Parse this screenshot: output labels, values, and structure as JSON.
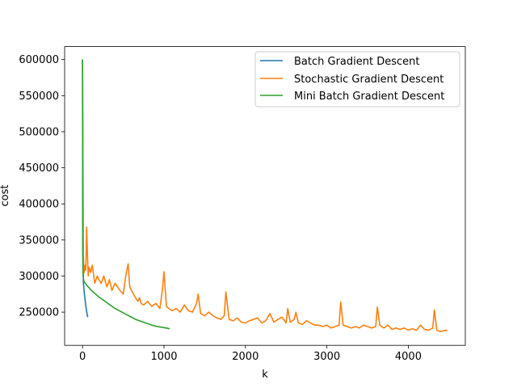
{
  "chart_data": {
    "type": "line",
    "title": "",
    "xlabel": "k",
    "ylabel": "cost",
    "xlim": [
      -220,
      4700
    ],
    "ylim": [
      204000,
      618000
    ],
    "xticks": [
      0,
      1000,
      2000,
      3000,
      4000
    ],
    "xtick_labels": [
      "0",
      "1000",
      "2000",
      "3000",
      "4000"
    ],
    "yticks": [
      250000,
      300000,
      350000,
      400000,
      450000,
      500000,
      550000,
      600000
    ],
    "ytick_labels": [
      "250000",
      "300000",
      "350000",
      "400000",
      "450000",
      "500000",
      "550000",
      "600000"
    ],
    "grid": false,
    "legend_position": "top-right",
    "series": [
      {
        "name": "Batch Gradient Descent",
        "color": "#1f77b4",
        "x": [
          0,
          2,
          5,
          10,
          15,
          20,
          30,
          40,
          50,
          60,
          65
        ],
        "y": [
          600000,
          420000,
          330000,
          292000,
          285000,
          278000,
          268000,
          259000,
          251000,
          245000,
          243000
        ]
      },
      {
        "name": "Stochastic Gradient Descent",
        "color": "#ff7f0e",
        "x": [
          0,
          5,
          10,
          15,
          20,
          30,
          40,
          50,
          60,
          70,
          80,
          100,
          120,
          150,
          180,
          200,
          230,
          260,
          300,
          330,
          360,
          400,
          430,
          460,
          500,
          530,
          560,
          580,
          600,
          650,
          680,
          700,
          720,
          750,
          800,
          850,
          900,
          950,
          980,
          1000,
          1030,
          1060,
          1100,
          1150,
          1200,
          1250,
          1300,
          1350,
          1400,
          1420,
          1450,
          1500,
          1550,
          1600,
          1650,
          1700,
          1740,
          1760,
          1800,
          1850,
          1900,
          1950,
          2000,
          2050,
          2100,
          2150,
          2200,
          2250,
          2300,
          2350,
          2400,
          2450,
          2500,
          2520,
          2550,
          2600,
          2620,
          2650,
          2700,
          2750,
          2800,
          2850,
          2900,
          2950,
          3000,
          3050,
          3100,
          3150,
          3170,
          3200,
          3250,
          3300,
          3350,
          3400,
          3450,
          3500,
          3550,
          3600,
          3620,
          3650,
          3700,
          3750,
          3800,
          3850,
          3900,
          3950,
          4000,
          4050,
          4100,
          4150,
          4200,
          4250,
          4300,
          4320,
          4350,
          4400,
          4450,
          4480
        ],
        "y": [
          600000,
          480000,
          330000,
          310000,
          305000,
          315000,
          308000,
          368000,
          330000,
          300000,
          312000,
          305000,
          315000,
          290000,
          300000,
          295000,
          290000,
          300000,
          285000,
          295000,
          280000,
          290000,
          285000,
          280000,
          275000,
          300000,
          317000,
          285000,
          280000,
          270000,
          265000,
          270000,
          262000,
          260000,
          265000,
          258000,
          262000,
          255000,
          280000,
          306000,
          258000,
          255000,
          252000,
          255000,
          250000,
          260000,
          252000,
          250000,
          262000,
          275000,
          248000,
          245000,
          250000,
          245000,
          242000,
          240000,
          245000,
          278000,
          240000,
          238000,
          242000,
          236000,
          235000,
          238000,
          240000,
          242000,
          235000,
          238000,
          248000,
          236000,
          240000,
          243000,
          235000,
          255000,
          236000,
          240000,
          250000,
          235000,
          233000,
          238000,
          235000,
          232000,
          232000,
          230000,
          232000,
          228000,
          230000,
          232000,
          264000,
          232000,
          230000,
          228000,
          230000,
          228000,
          232000,
          230000,
          228000,
          230000,
          257000,
          232000,
          228000,
          232000,
          226000,
          228000,
          226000,
          228000,
          225000,
          227000,
          225000,
          232000,
          226000,
          225000,
          228000,
          253000,
          225000,
          223000,
          225000,
          224000
        ]
      },
      {
        "name": "Mini Batch Gradient Descent",
        "color": "#2ca02c",
        "x": [
          0,
          3,
          6,
          10,
          15,
          20,
          40,
          60,
          80,
          100,
          150,
          200,
          250,
          300,
          350,
          400,
          450,
          500,
          550,
          600,
          650,
          700,
          750,
          800,
          850,
          900,
          950,
          1000,
          1050,
          1070
        ],
        "y": [
          600000,
          330000,
          302000,
          297000,
          294000,
          292000,
          289000,
          286000,
          284000,
          281000,
          276000,
          271000,
          267000,
          263000,
          259000,
          255000,
          252000,
          249000,
          246000,
          243000,
          240000,
          238000,
          236000,
          234000,
          232000,
          230500,
          229500,
          228500,
          227500,
          227000
        ]
      }
    ]
  }
}
